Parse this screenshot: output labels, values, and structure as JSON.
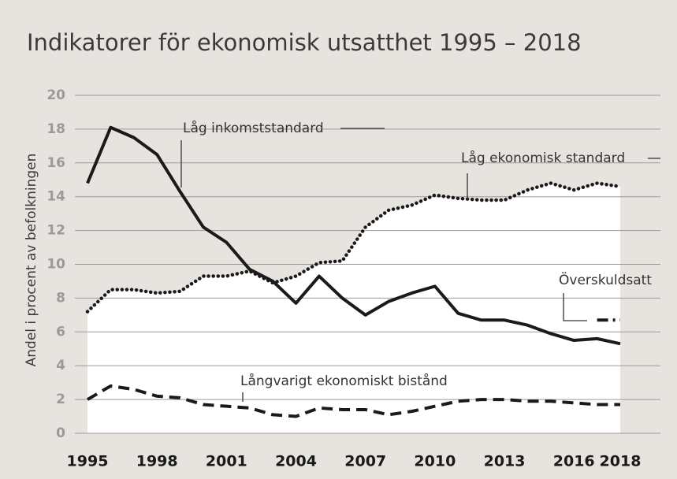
{
  "chart_data": {
    "type": "line",
    "title": "Indikatorer för ekonomisk utsatthet 1995 – 2018",
    "ylabel": "Andel i procent av befolkningen",
    "x": [
      1995,
      1996,
      1997,
      1998,
      1999,
      2000,
      2001,
      2002,
      2003,
      2004,
      2005,
      2006,
      2007,
      2008,
      2009,
      2010,
      2011,
      2012,
      2013,
      2014,
      2015,
      2016,
      2017,
      2018
    ],
    "xlim": [
      1995,
      2018
    ],
    "xticks": [
      1995,
      1998,
      2001,
      2004,
      2007,
      2010,
      2013,
      2016,
      2018
    ],
    "ylim": [
      0,
      20
    ],
    "yticks": [
      0,
      2,
      4,
      6,
      8,
      10,
      12,
      14,
      16,
      18,
      20
    ],
    "grid": true,
    "series": [
      {
        "name": "Låg ekonomisk standard",
        "color": "#1a1a1a",
        "style": "dotted",
        "fill": "#ffffff",
        "values": [
          7.2,
          8.5,
          8.5,
          8.3,
          8.4,
          9.3,
          9.3,
          9.6,
          8.9,
          9.3,
          10.1,
          10.2,
          12.2,
          13.2,
          13.5,
          14.1,
          13.9,
          13.8,
          13.8,
          14.4,
          14.8,
          14.4,
          14.8,
          14.6
        ]
      },
      {
        "name": "Låg inkomststandard",
        "color": "#1a1a1a",
        "style": "solid",
        "values": [
          14.8,
          18.1,
          17.5,
          16.5,
          14.3,
          12.2,
          11.3,
          9.7,
          9.0,
          7.7,
          9.3,
          8.0,
          7.0,
          7.8,
          8.3,
          8.7,
          7.1,
          6.7,
          6.7,
          6.4,
          5.9,
          5.5,
          5.6,
          5.3
        ]
      },
      {
        "name": "Långvarigt ekonomiskt bistånd",
        "color": "#1a1a1a",
        "style": "dashed",
        "values": [
          2.0,
          2.8,
          2.6,
          2.2,
          2.1,
          1.7,
          1.6,
          1.5,
          1.1,
          1.0,
          1.5,
          1.4,
          1.4,
          1.1,
          1.3,
          1.6,
          1.9,
          2.0,
          2.0,
          1.9,
          1.9,
          1.8,
          1.7,
          1.7
        ]
      },
      {
        "name": "Överskuldsatt",
        "color": "#1a1a1a",
        "style": "dashdot",
        "values": [
          null,
          null,
          null,
          null,
          null,
          null,
          null,
          null,
          null,
          null,
          null,
          null,
          null,
          null,
          null,
          null,
          null,
          null,
          null,
          null,
          null,
          null,
          6.7,
          6.7
        ]
      }
    ]
  }
}
